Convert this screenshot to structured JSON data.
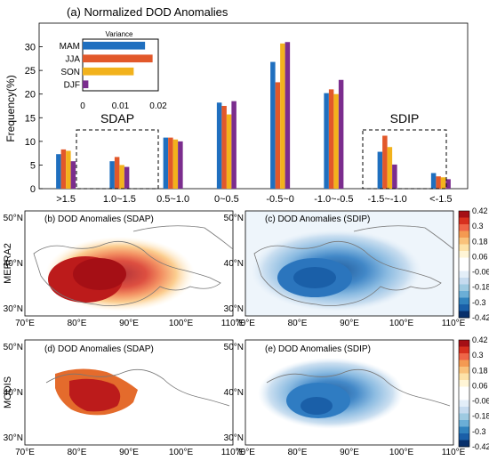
{
  "chart_data": [
    {
      "type": "bar",
      "title": "(a) Normalized DOD Anomalies",
      "ylabel": "Frequency(%)",
      "ylim": [
        0,
        35
      ],
      "yticks": [
        0,
        5,
        10,
        15,
        20,
        25,
        30
      ],
      "categories": [
        ">1.5",
        "1.0~1.5",
        "0.5~1.0",
        "0~0.5",
        "-0.5~0",
        "-1.0~-0.5",
        "-1.5~-1.0",
        "<-1.5"
      ],
      "series": [
        {
          "name": "MAM",
          "color": "#1f6fbf",
          "values": [
            7.3,
            5.8,
            10.8,
            18.2,
            26.8,
            20.2,
            7.8,
            3.3
          ]
        },
        {
          "name": "JJA",
          "color": "#e2582a",
          "values": [
            8.3,
            6.7,
            10.8,
            17.5,
            22.5,
            21.0,
            11.2,
            2.6
          ]
        },
        {
          "name": "SON",
          "color": "#f2b21c",
          "values": [
            8.0,
            5.0,
            10.4,
            15.7,
            30.7,
            20.0,
            8.8,
            2.4
          ]
        },
        {
          "name": "DJF",
          "color": "#7b2d8e",
          "values": [
            5.8,
            4.6,
            10.0,
            18.5,
            31.0,
            23.0,
            5.1,
            2.0
          ]
        }
      ],
      "groups": [
        {
          "label": "SDAP",
          "categories": [
            ">1.5",
            "1.0~1.5"
          ]
        },
        {
          "label": "SDIP",
          "categories": [
            "-1.5~-1.0",
            "<-1.5"
          ]
        }
      ],
      "inset": {
        "type": "bar",
        "orientation": "horizontal",
        "title": "Variance",
        "categories": [
          "MAM",
          "JJA",
          "SON",
          "DJF"
        ],
        "values": [
          0.0165,
          0.0185,
          0.0135,
          0.0015
        ],
        "xlim": [
          0,
          0.02
        ],
        "xticks": [
          "0",
          "0.01",
          "0.02"
        ]
      }
    },
    {
      "type": "heatmap",
      "panels": [
        {
          "title": "(b) DOD Anomalies (SDAP)",
          "sign": "positive"
        },
        {
          "title": "(c) DOD Anomalies (SDIP)",
          "sign": "negative"
        },
        {
          "title": "(d) DOD Anomalies (SDAP)",
          "sign": "positive"
        },
        {
          "title": "(e) DOD Anomalies (SDIP)",
          "sign": "negative"
        }
      ],
      "row_labels": [
        "MERRA2",
        "MODIS"
      ],
      "xticks": [
        "70°E",
        "80°E",
        "90°E",
        "100°E",
        "110°E"
      ],
      "yticks": [
        "50°N",
        "40°N",
        "30°N"
      ],
      "colorbar": {
        "levels": [
          "0.42",
          "0.3",
          "0.18",
          "0.06",
          "-0.06",
          "-0.18",
          "-0.3",
          "-0.42"
        ],
        "colors": [
          "#a50f15",
          "#d7301f",
          "#ef6548",
          "#f49a52",
          "#f9c27b",
          "#fde2a8",
          "#fff5d6",
          "#ffffff",
          "#ffffff",
          "#e3eef8",
          "#c6dbef",
          "#9ecae1",
          "#6baed6",
          "#3182bd",
          "#1a5fa8",
          "#08306b"
        ]
      }
    }
  ]
}
